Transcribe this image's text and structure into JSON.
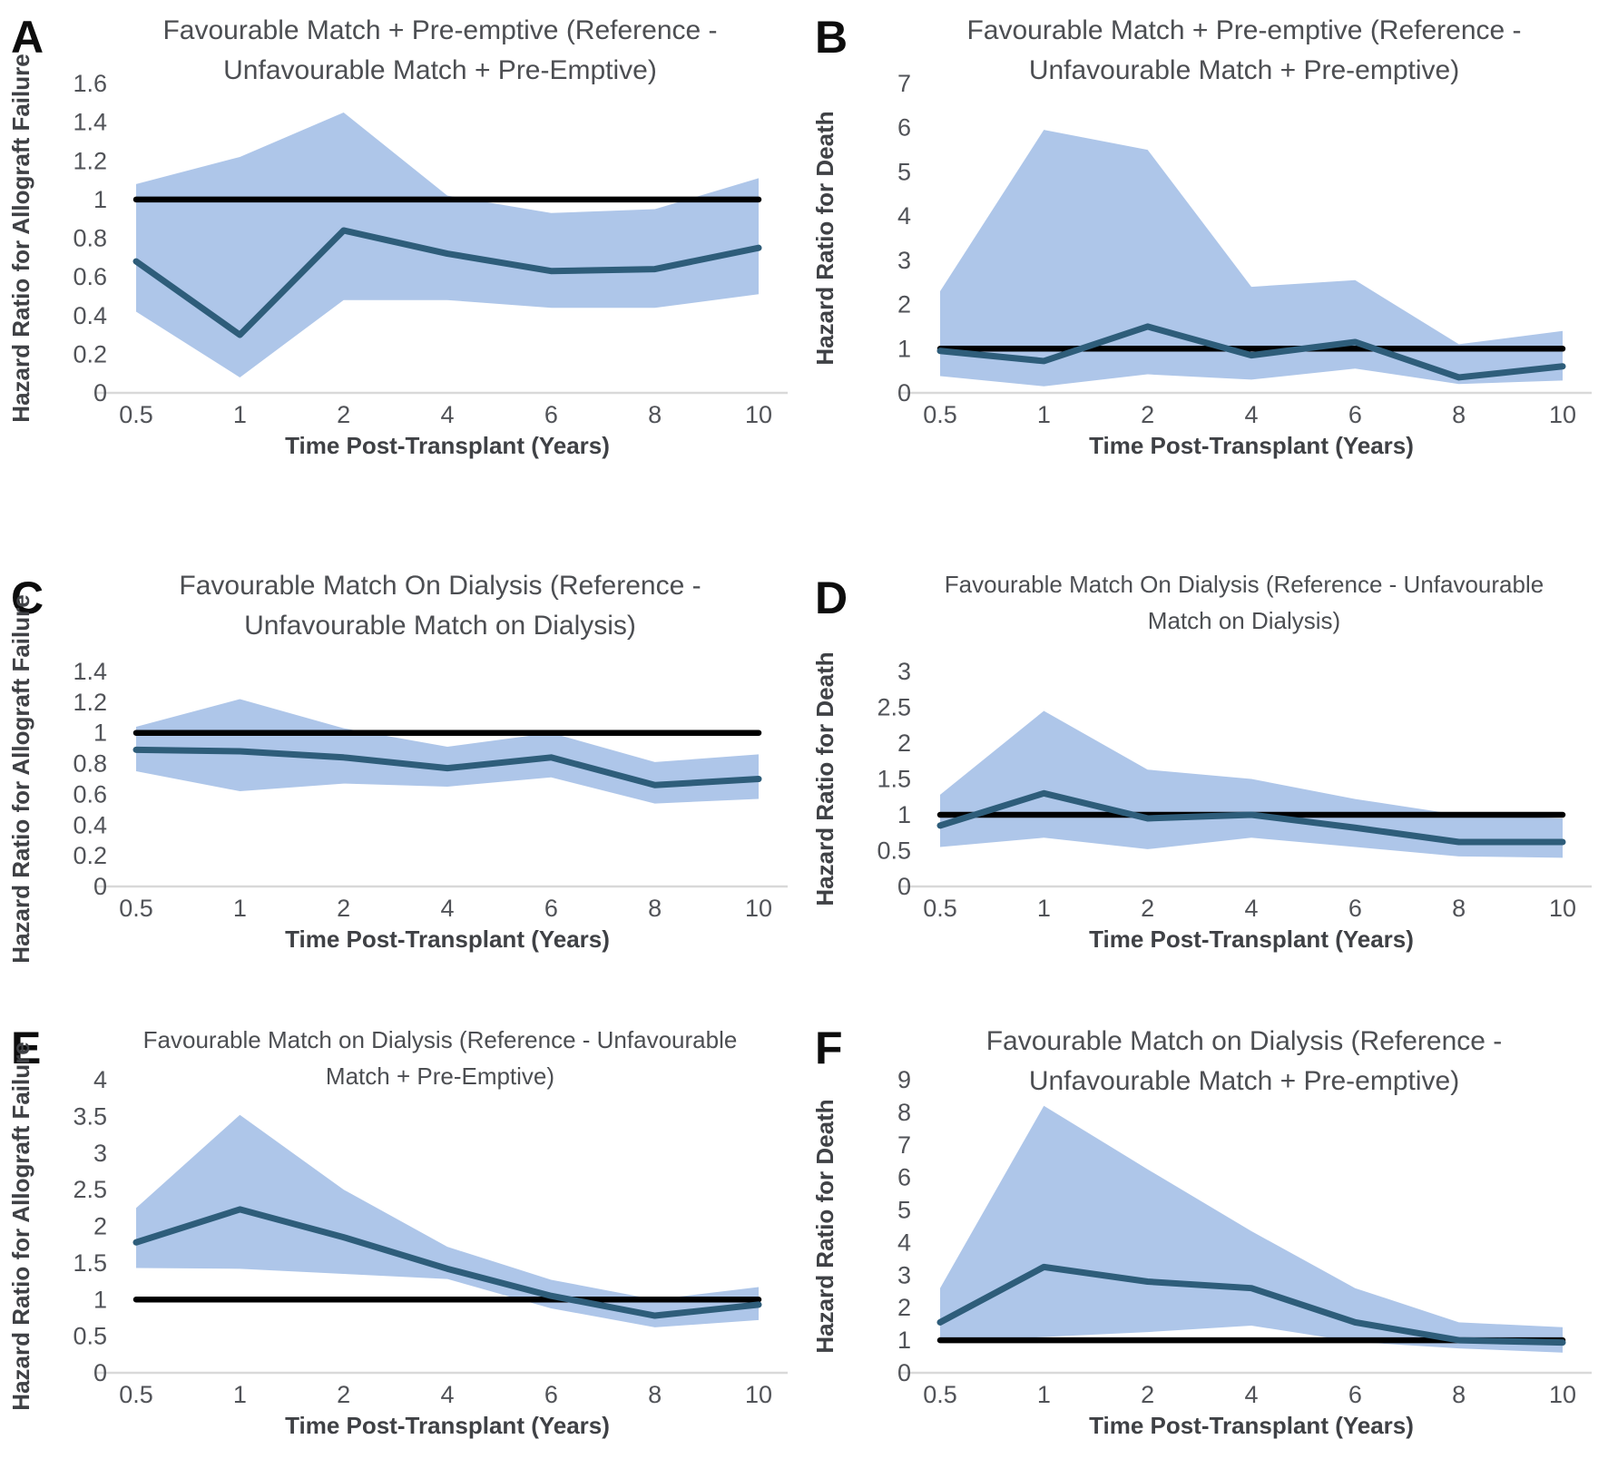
{
  "page": {
    "background": "#ffffff",
    "figure_description": "Six-panel hazard ratio figure (A-F)"
  },
  "style": {
    "band_color": "#aec6e9",
    "line_color": "#2e5d7a",
    "reference_color": "#000000",
    "baseline_color": "#d9d9d9",
    "title_color": "#4c4e52",
    "tick_color": "#515358",
    "axis_title_color": "#3f4145",
    "panel_letter_color": "#0d0d0d"
  },
  "chart_data": [
    {
      "panel_label": "A",
      "type": "line",
      "title": "Favourable Match + Pre-emptive (Reference - Unfavourable Match + Pre-Emptive)",
      "title_lines": [
        "Favourable Match + Pre-emptive (Reference -",
        "Unfavourable Match + Pre-Emptive)"
      ],
      "ylabel": "Hazard Ratio for Allograft Failure",
      "xlabel": "Time Post-Transplant (Years)",
      "x_categories": [
        "0.5",
        "1",
        "2",
        "4",
        "6",
        "8",
        "10"
      ],
      "ylim": [
        0,
        1.6
      ],
      "yticks": [
        0,
        0.2,
        0.4,
        0.6,
        0.8,
        1,
        1.2,
        1.4,
        1.6
      ],
      "reference_line": 1,
      "grid": "off",
      "legend": "none",
      "series": [
        {
          "name": "hazard-ratio",
          "values": [
            0.68,
            0.3,
            0.84,
            0.72,
            0.63,
            0.64,
            0.75
          ]
        },
        {
          "name": "ci-upper",
          "values": [
            1.08,
            1.22,
            1.45,
            1.02,
            0.93,
            0.95,
            1.11
          ]
        },
        {
          "name": "ci-lower",
          "values": [
            0.42,
            0.08,
            0.48,
            0.48,
            0.44,
            0.44,
            0.51
          ]
        }
      ]
    },
    {
      "panel_label": "B",
      "type": "line",
      "title": "Favourable Match + Pre-emptive (Reference - Unfavourable Match + Pre-emptive)",
      "title_lines": [
        "Favourable Match + Pre-emptive (Reference -",
        "Unfavourable Match + Pre-emptive)"
      ],
      "ylabel": "Hazard Ratio for Death",
      "xlabel": "Time Post-Transplant (Years)",
      "x_categories": [
        "0.5",
        "1",
        "2",
        "4",
        "6",
        "8",
        "10"
      ],
      "ylim": [
        0,
        7
      ],
      "yticks": [
        0,
        1,
        2,
        3,
        4,
        5,
        6,
        7
      ],
      "reference_line": 1,
      "grid": "off",
      "legend": "none",
      "series": [
        {
          "name": "hazard-ratio",
          "values": [
            0.95,
            0.72,
            1.5,
            0.85,
            1.15,
            0.35,
            0.6
          ]
        },
        {
          "name": "ci-upper",
          "values": [
            2.3,
            5.95,
            5.5,
            2.4,
            2.55,
            1.1,
            1.4
          ]
        },
        {
          "name": "ci-lower",
          "values": [
            0.38,
            0.15,
            0.42,
            0.3,
            0.55,
            0.2,
            0.28
          ]
        }
      ]
    },
    {
      "panel_label": "C",
      "type": "line",
      "title": "Favourable Match On Dialysis (Reference - Unfavourable Match on Dialysis)",
      "title_lines": [
        "Favourable Match On Dialysis (Reference -",
        "Unfavourable Match on Dialysis)"
      ],
      "ylabel": "Hazard Ratio for Allograft Failure",
      "xlabel": "Time Post-Transplant (Years)",
      "x_categories": [
        "0.5",
        "1",
        "2",
        "4",
        "6",
        "8",
        "10"
      ],
      "ylim": [
        0,
        1.4
      ],
      "yticks": [
        0,
        0.2,
        0.4,
        0.6,
        0.8,
        1,
        1.2,
        1.4
      ],
      "reference_line": 1,
      "grid": "off",
      "legend": "none",
      "series": [
        {
          "name": "hazard-ratio",
          "values": [
            0.89,
            0.88,
            0.84,
            0.77,
            0.84,
            0.66,
            0.7
          ]
        },
        {
          "name": "ci-upper",
          "values": [
            1.04,
            1.22,
            1.03,
            0.91,
            1.0,
            0.81,
            0.86
          ]
        },
        {
          "name": "ci-lower",
          "values": [
            0.75,
            0.62,
            0.67,
            0.65,
            0.71,
            0.54,
            0.57
          ]
        }
      ]
    },
    {
      "panel_label": "D",
      "type": "line",
      "title": "Favourable Match On Dialysis (Reference - Unfavourable Match on Dialysis)",
      "title_lines": [
        "Favourable Match On Dialysis (Reference - Unfavourable",
        "Match on Dialysis)"
      ],
      "ylabel": "Hazard Ratio for Death",
      "xlabel": "Time Post-Transplant (Years)",
      "x_categories": [
        "0.5",
        "1",
        "2",
        "4",
        "6",
        "8",
        "10"
      ],
      "ylim": [
        0,
        3
      ],
      "yticks": [
        0,
        0.5,
        1,
        1.5,
        2,
        2.5,
        3
      ],
      "reference_line": 1,
      "grid": "off",
      "legend": "none",
      "series": [
        {
          "name": "hazard-ratio",
          "values": [
            0.85,
            1.3,
            0.95,
            1.0,
            0.82,
            0.62,
            0.62
          ]
        },
        {
          "name": "ci-upper",
          "values": [
            1.28,
            2.45,
            1.63,
            1.5,
            1.22,
            1.0,
            0.95
          ]
        },
        {
          "name": "ci-lower",
          "values": [
            0.55,
            0.68,
            0.52,
            0.68,
            0.55,
            0.42,
            0.4
          ]
        }
      ]
    },
    {
      "panel_label": "E",
      "type": "line",
      "title": "Favourable Match on Dialysis (Reference - Unfavourable Match + Pre-Emptive)",
      "title_lines": [
        "Favourable Match on Dialysis (Reference - Unfavourable",
        "Match + Pre-Emptive)"
      ],
      "ylabel": "Hazard Ratio for Allograft Failure",
      "xlabel": "Time Post-Transplant (Years)",
      "x_categories": [
        "0.5",
        "1",
        "2",
        "4",
        "6",
        "8",
        "10"
      ],
      "ylim": [
        0,
        4
      ],
      "yticks": [
        0,
        0.5,
        1,
        1.5,
        2,
        2.5,
        3,
        3.5,
        4
      ],
      "reference_line": 1,
      "grid": "off",
      "legend": "none",
      "series": [
        {
          "name": "hazard-ratio",
          "values": [
            1.78,
            2.23,
            1.85,
            1.42,
            1.05,
            0.78,
            0.93
          ]
        },
        {
          "name": "ci-upper",
          "values": [
            2.25,
            3.52,
            2.5,
            1.72,
            1.27,
            1.0,
            1.17
          ]
        },
        {
          "name": "ci-lower",
          "values": [
            1.43,
            1.42,
            1.35,
            1.28,
            0.88,
            0.62,
            0.72
          ]
        }
      ]
    },
    {
      "panel_label": "F",
      "type": "line",
      "title": "Favourable Match on Dialysis (Reference - Unfavourable Match + Pre-emptive)",
      "title_lines": [
        "Favourable Match on Dialysis (Reference -",
        "Unfavourable Match + Pre-emptive)"
      ],
      "ylabel": "Hazard Ratio for Death",
      "xlabel": "Time Post-Transplant (Years)",
      "x_categories": [
        "0.5",
        "1",
        "2",
        "4",
        "6",
        "8",
        "10"
      ],
      "ylim": [
        0,
        9
      ],
      "yticks": [
        0,
        1,
        2,
        3,
        4,
        5,
        6,
        7,
        8,
        9
      ],
      "reference_line": 1,
      "grid": "off",
      "legend": "none",
      "series": [
        {
          "name": "hazard-ratio",
          "values": [
            1.55,
            3.25,
            2.8,
            2.6,
            1.55,
            1.0,
            0.93
          ]
        },
        {
          "name": "ci-upper",
          "values": [
            2.6,
            8.2,
            6.25,
            4.35,
            2.6,
            1.55,
            1.4
          ]
        },
        {
          "name": "ci-lower",
          "values": [
            0.95,
            1.1,
            1.25,
            1.45,
            0.95,
            0.75,
            0.62
          ]
        }
      ]
    }
  ]
}
